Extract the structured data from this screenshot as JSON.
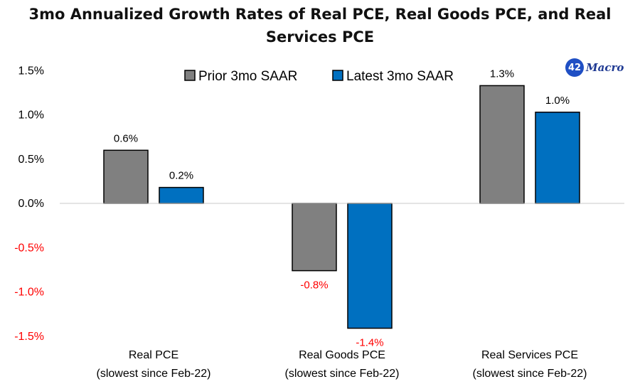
{
  "chart_data": {
    "type": "bar",
    "title_line1": "3mo Annualized Growth Rates of Real PCE, Real Goods PCE, and Real",
    "title_line2": "Services PCE",
    "categories": [
      [
        "Real PCE",
        "(slowest since Feb-22)"
      ],
      [
        "Real Goods PCE",
        "(slowest since Feb-22)"
      ],
      [
        "Real Services PCE",
        "(slowest since Feb-22)"
      ]
    ],
    "series": [
      {
        "name": "Prior 3mo SAAR",
        "color": "#808080",
        "values": [
          0.6,
          -0.76,
          1.33
        ],
        "labels": [
          "0.6%",
          "-0.8%",
          "1.3%"
        ]
      },
      {
        "name": "Latest 3mo SAAR",
        "color": "#0070c0",
        "values": [
          0.18,
          -1.41,
          1.03
        ],
        "labels": [
          "0.2%",
          "-1.4%",
          "1.0%"
        ]
      }
    ],
    "ylim": [
      -1.5,
      1.5
    ],
    "yticks": [
      1.5,
      1.0,
      0.5,
      0.0,
      -0.5,
      -1.0,
      -1.5
    ],
    "ytick_labels": [
      "1.5%",
      "1.0%",
      "0.5%",
      "0.0%",
      "-0.5%",
      "-1.0%",
      "-1.5%"
    ],
    "negative_color": "#ff0000",
    "legend_position": "top-center",
    "grid": false
  },
  "logo": {
    "number": "42",
    "word": "Macro"
  }
}
